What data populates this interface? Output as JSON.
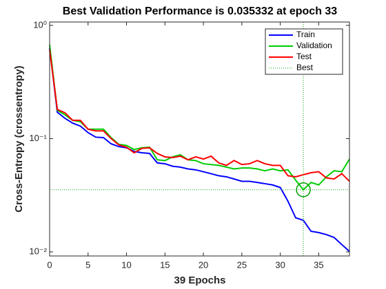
{
  "chart_data": {
    "type": "line",
    "title": "Best Validation Performance is 0.035332 at epoch 33",
    "x_label": "39 Epochs",
    "y_label": "Cross-Entropy  (crossentropy)",
    "log_y": true,
    "x": [
      0,
      1,
      2,
      3,
      4,
      5,
      6,
      7,
      8,
      9,
      10,
      11,
      12,
      13,
      14,
      15,
      16,
      17,
      18,
      19,
      20,
      21,
      22,
      23,
      24,
      25,
      26,
      27,
      28,
      29,
      30,
      31,
      32,
      33,
      34,
      35,
      36,
      37,
      38,
      39
    ],
    "series": [
      {
        "name": "Train",
        "color": "#0000ff",
        "values": [
          0.63,
          0.171,
          0.151,
          0.137,
          0.129,
          0.113,
          0.103,
          0.102,
          0.09,
          0.085,
          0.083,
          0.077,
          0.075,
          0.074,
          0.061,
          0.06,
          0.057,
          0.056,
          0.054,
          0.053,
          0.051,
          0.049,
          0.047,
          0.046,
          0.044,
          0.042,
          0.042,
          0.041,
          0.04,
          0.039,
          0.037,
          0.028,
          0.02,
          0.019,
          0.0152,
          0.0148,
          0.0142,
          0.0134,
          0.0116,
          0.0101
        ]
      },
      {
        "name": "Validation",
        "color": "#00cc00",
        "values": [
          0.675,
          0.178,
          0.162,
          0.145,
          0.141,
          0.121,
          0.121,
          0.121,
          0.102,
          0.089,
          0.087,
          0.08,
          0.083,
          0.084,
          0.065,
          0.064,
          0.069,
          0.072,
          0.065,
          0.064,
          0.06,
          0.059,
          0.058,
          0.056,
          0.054,
          0.055,
          0.055,
          0.054,
          0.052,
          0.054,
          0.052,
          0.053,
          0.043,
          0.035332,
          0.041,
          0.039,
          0.046,
          0.052,
          0.051,
          0.066
        ]
      },
      {
        "name": "Test",
        "color": "#ff0000",
        "values": [
          0.61,
          0.181,
          0.169,
          0.145,
          0.145,
          0.121,
          0.117,
          0.117,
          0.1,
          0.088,
          0.084,
          0.075,
          0.082,
          0.083,
          0.074,
          0.069,
          0.068,
          0.07,
          0.065,
          0.069,
          0.066,
          0.07,
          0.061,
          0.058,
          0.064,
          0.059,
          0.06,
          0.064,
          0.06,
          0.058,
          0.058,
          0.047,
          0.046,
          0.048,
          0.05,
          0.051,
          0.045,
          0.044,
          0.049,
          0.042
        ]
      }
    ],
    "best": {
      "name": "Best",
      "x": 33,
      "y": 0.035332,
      "color": "#00a000"
    },
    "xlim": [
      0,
      39
    ],
    "ylim": [
      0.0092,
      1.07
    ],
    "xticks": [
      0,
      5,
      10,
      15,
      20,
      25,
      30,
      35
    ],
    "yticks": [
      {
        "value": 1,
        "label": "10⁰"
      },
      {
        "value": 0.1,
        "label": "10⁻¹"
      },
      {
        "value": 0.01,
        "label": "10⁻²"
      }
    ],
    "legend": "upper right"
  }
}
